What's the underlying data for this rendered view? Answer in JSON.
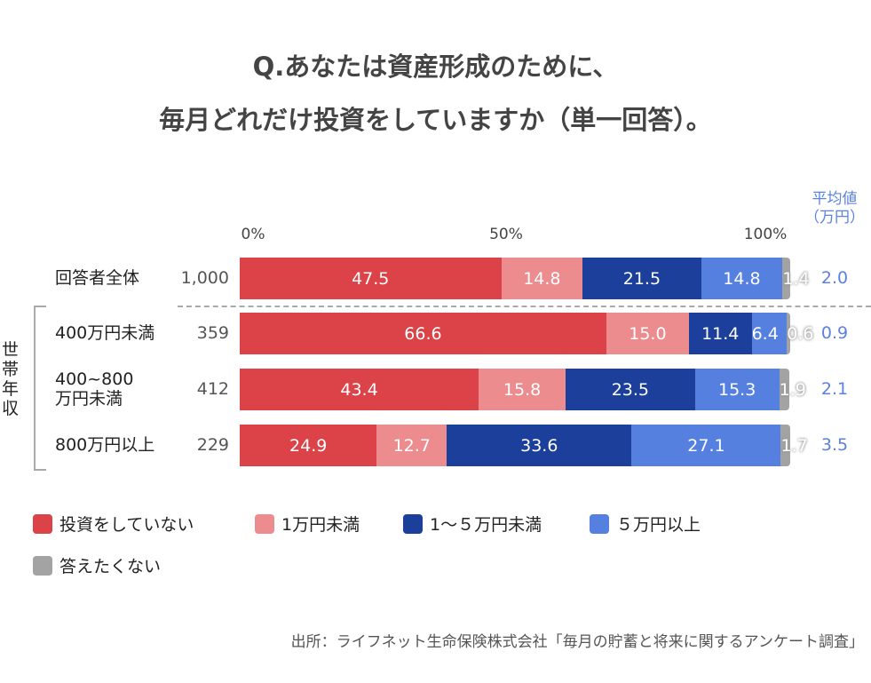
{
  "chart_data": {
    "type": "bar",
    "orientation": "horizontal-stacked",
    "title": [
      "Q.あなたは資産形成のために、",
      "毎月どれだけ投資をしていますか（単一回答）。"
    ],
    "xlim": [
      0,
      100
    ],
    "x_ticks": [
      "0%",
      "50%",
      "100%"
    ],
    "group_label": "世帯年収",
    "avg_header": "平均値（万円）",
    "categories": [
      "回答者全体",
      "400万円未満",
      "400~800万円未満",
      "800万円以上"
    ],
    "counts": [
      "1,000",
      "359",
      "412",
      "229"
    ],
    "averages": [
      "2.0",
      "0.9",
      "2.1",
      "3.5"
    ],
    "series": [
      {
        "name": "投資をしていない",
        "color": "#dc4349",
        "values": [
          47.5,
          66.6,
          43.4,
          24.9
        ]
      },
      {
        "name": "1万円未満",
        "color": "#ec8c8e",
        "values": [
          14.8,
          15.0,
          15.8,
          12.7
        ]
      },
      {
        "name": "1～５万円未満",
        "color": "#1b3f9b",
        "values": [
          21.5,
          11.4,
          23.5,
          33.6
        ]
      },
      {
        "name": "５万円以上",
        "color": "#5580e0",
        "values": [
          14.8,
          6.4,
          15.3,
          27.1
        ]
      },
      {
        "name": "答えたくない",
        "color": "#a3a3a3",
        "values": [
          1.4,
          0.6,
          1.9,
          1.7
        ]
      }
    ],
    "legend": "bottom",
    "source": "出所：ライフネット生命保険株式会社「毎月の貯蓄と将来に関するアンケート調査」"
  }
}
